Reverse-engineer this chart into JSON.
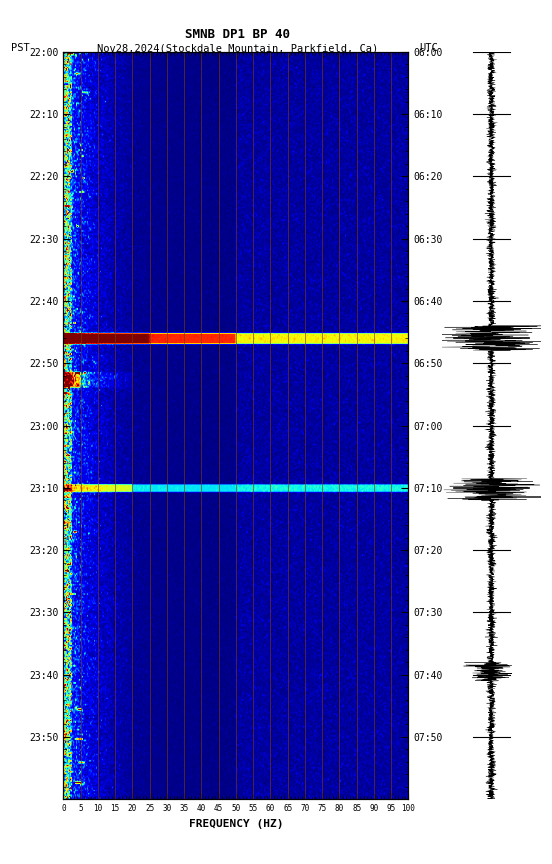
{
  "title_line1": "SMNB DP1 BP 40",
  "title_line2": "PST   Nov28,2024(Stockdale Mountain, Parkfield, Ca)      UTC",
  "xlabel": "FREQUENCY (HZ)",
  "freq_ticks": [
    0,
    5,
    10,
    15,
    20,
    25,
    30,
    35,
    40,
    45,
    50,
    55,
    60,
    65,
    70,
    75,
    80,
    85,
    90,
    95,
    100
  ],
  "pst_ticks": [
    "22:00",
    "22:10",
    "22:20",
    "22:30",
    "22:40",
    "22:50",
    "23:00",
    "23:10",
    "23:20",
    "23:30",
    "23:40",
    "23:50"
  ],
  "utc_ticks": [
    "06:00",
    "06:10",
    "06:20",
    "06:30",
    "06:40",
    "06:50",
    "07:00",
    "07:10",
    "07:20",
    "07:30",
    "07:40",
    "07:50"
  ],
  "vertical_line_freqs": [
    5,
    10,
    15,
    20,
    25,
    30,
    35,
    40,
    45,
    50,
    55,
    60,
    65,
    70,
    75,
    80,
    85,
    90,
    95
  ],
  "vertical_line_color": "#7B3B00",
  "background_color": "#ffffff",
  "figure_width": 5.52,
  "figure_height": 8.64,
  "dpi": 100
}
